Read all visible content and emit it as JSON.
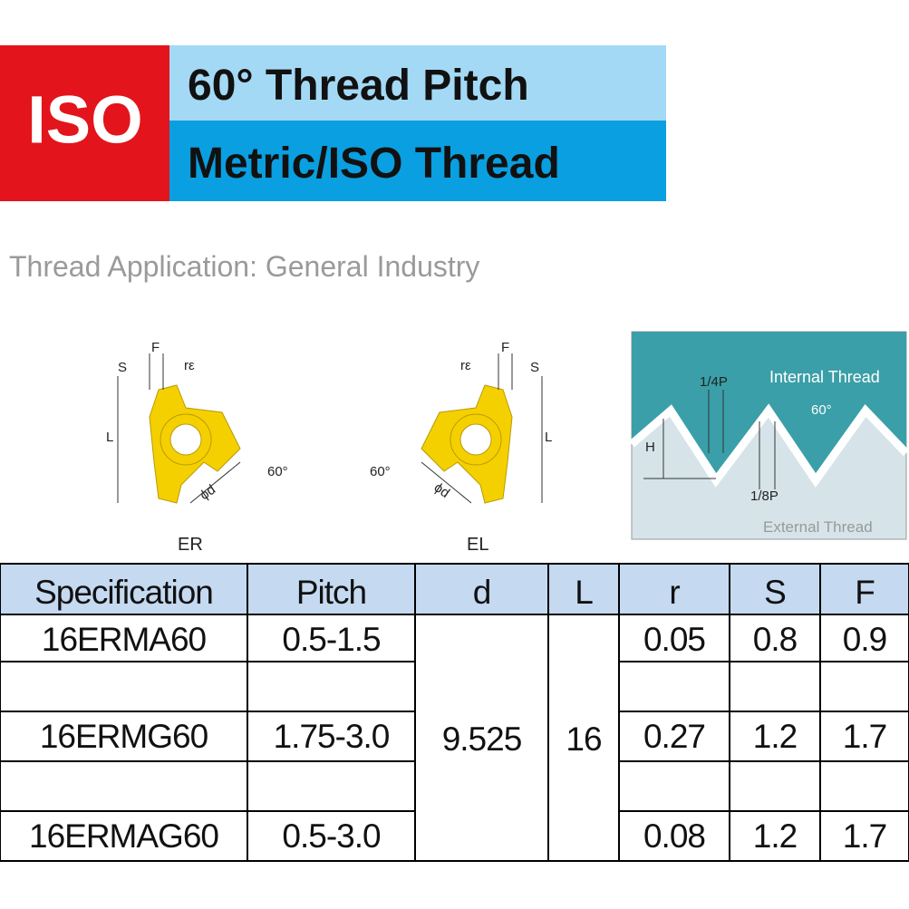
{
  "header": {
    "badge": "ISO",
    "line1": "60° Thread Pitch",
    "line2": "Metric/ISO Thread"
  },
  "application": "Thread Application: General Industry",
  "inserts": [
    {
      "label": "ER",
      "F": "F",
      "S": "S",
      "r": "rε",
      "L": "L",
      "angle": "60°",
      "d": "ϕd"
    },
    {
      "label": "EL",
      "F": "F",
      "S": "S",
      "r": "rε",
      "L": "L",
      "angle": "60°",
      "d": "ϕd"
    }
  ],
  "thread_diagram": {
    "quarter": "1/4P",
    "internal": "Internal Thread",
    "angle": "60°",
    "height": "H",
    "eighth": "1/8P",
    "external": "External Thread"
  },
  "table": {
    "headers": [
      "Specification",
      "Pitch",
      "d",
      "L",
      "r",
      "S",
      "F"
    ],
    "shared_d": "9.525",
    "shared_L": "16",
    "rows": [
      [
        "16ERMA60",
        "0.5-1.5",
        "0.05",
        "0.8",
        "0.9"
      ],
      [
        "16ERMG60",
        "1.75-3.0",
        "0.27",
        "1.2",
        "1.7"
      ],
      [
        "16ERMAG60",
        "0.5-3.0",
        "0.08",
        "1.2",
        "1.7"
      ]
    ]
  }
}
